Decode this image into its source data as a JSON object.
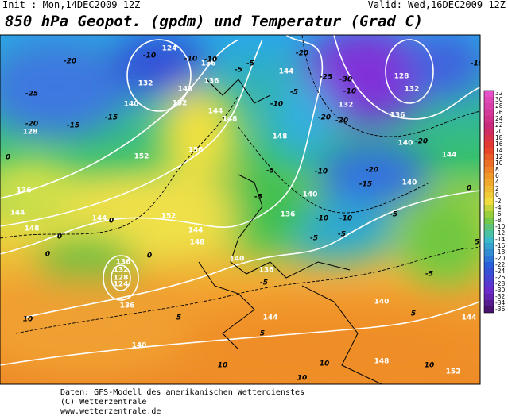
{
  "header": {
    "init": "Init : Mon,14DEC2009 12Z",
    "valid": "Valid: Wed,16DEC2009 12Z",
    "title": "850 hPa Geopot. (gpdm) und Temperatur (Grad C)"
  },
  "map": {
    "geopotential_labels": [
      124,
      132,
      140,
      148,
      152,
      136,
      144,
      148,
      156,
      152,
      128,
      136,
      144,
      148,
      144,
      152,
      144,
      148,
      140,
      136,
      132,
      128,
      124,
      136,
      140,
      144,
      148,
      152,
      152,
      140,
      136,
      140,
      144,
      136,
      128,
      132,
      136,
      140,
      144,
      140,
      132,
      144,
      148,
      136
    ],
    "temperature_labels": [
      -25,
      -20,
      -20,
      -15,
      -15,
      -10,
      -10,
      -5,
      -5,
      -10,
      -5,
      -20,
      -25,
      -30,
      -20,
      -20,
      -20,
      -20,
      -15,
      -10,
      -10,
      -10,
      -5,
      -5,
      -5,
      -5,
      0,
      0,
      0,
      0,
      5,
      5,
      -5,
      10,
      10,
      10,
      10,
      10,
      -5,
      -5,
      -10,
      5,
      5,
      -15,
      -10,
      0,
      0
    ]
  },
  "colorbar": {
    "ticks": [
      32,
      30,
      28,
      26,
      24,
      22,
      20,
      18,
      16,
      14,
      12,
      10,
      8,
      6,
      4,
      2,
      0,
      -2,
      -4,
      -6,
      -8,
      -10,
      -12,
      -14,
      -16,
      -18,
      -20,
      -22,
      -24,
      -26,
      -28,
      -30,
      -32,
      -34,
      -36
    ]
  },
  "footer": {
    "lines": [
      "Daten: GFS-Modell des amerikanischen Wetterdienstes",
      "(C) Wetterzentrale",
      "www.wetterzentrale.de"
    ]
  }
}
